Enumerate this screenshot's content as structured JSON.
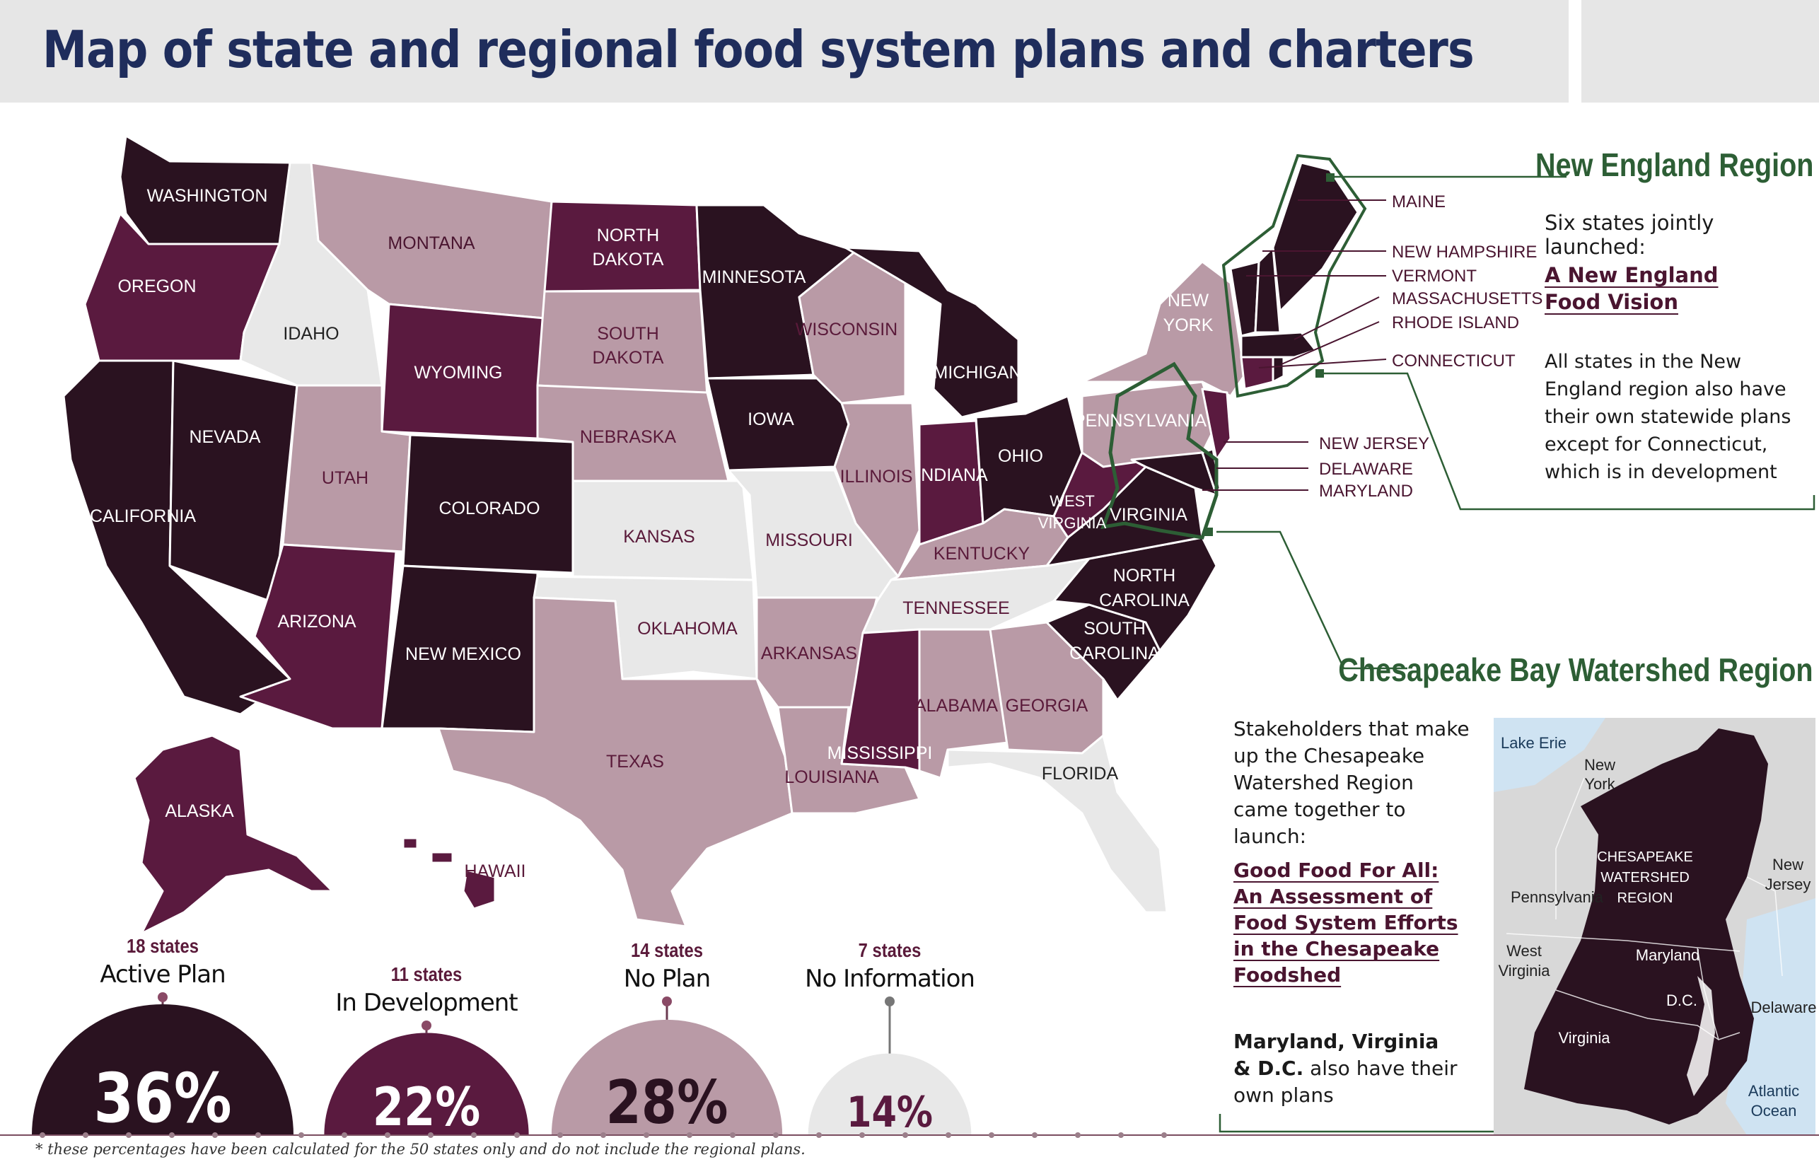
{
  "title": "Map of state and regional food system plans and charters",
  "colors": {
    "active": "#2a1220",
    "development": "#5a1a3f",
    "noplan": "#b99aa6",
    "noinfo": "#e8e8e8",
    "region_green": "#2d5e35"
  },
  "states": {
    "washington": "WASHINGTON",
    "oregon": "OREGON",
    "california": "CALIFORNIA",
    "nevada": "NEVADA",
    "idaho": "IDAHO",
    "montana": "MONTANA",
    "wyoming": "WYOMING",
    "utah": "UTAH",
    "arizona": "ARIZONA",
    "colorado": "COLORADO",
    "new_mexico": "NEW MEXICO",
    "north_dakota_1": "NORTH",
    "north_dakota_2": "DAKOTA",
    "south_dakota_1": "SOUTH",
    "south_dakota_2": "DAKOTA",
    "nebraska": "NEBRASKA",
    "kansas": "KANSAS",
    "oklahoma": "OKLAHOMA",
    "texas": "TEXAS",
    "minnesota": "MINNESOTA",
    "iowa": "IOWA",
    "missouri": "MISSOURI",
    "arkansas": "ARKANSAS",
    "louisiana": "LOUISIANA",
    "wisconsin": "WISCONSIN",
    "illinois": "ILLINOIS",
    "michigan": "MICHIGAN",
    "indiana": "INDIANA",
    "ohio": "OHIO",
    "kentucky": "KENTUCKY",
    "tennessee": "TENNESSEE",
    "mississippi": "MISSISSIPPI",
    "alabama": "ALABAMA",
    "georgia": "GEORGIA",
    "florida": "FLORIDA",
    "south_carolina_1": "SOUTH",
    "south_carolina_2": "CAROLINA",
    "north_carolina_1": "NORTH",
    "north_carolina_2": "CAROLINA",
    "virginia": "VIRGINIA",
    "west_virginia_1": "WEST",
    "west_virginia_2": "VIRGINIA",
    "pennsylvania": "PENNSYLVANIA",
    "new_york_1": "NEW",
    "new_york_2": "YORK",
    "alaska": "ALASKA",
    "hawaii": "HAWAII"
  },
  "callouts": {
    "maine": "MAINE",
    "new_hampshire": "NEW HAMPSHIRE",
    "vermont": "VERMONT",
    "massachusetts": "MASSACHUSETTS",
    "rhode_island": "RHODE ISLAND",
    "connecticut": "CONNECTICUT",
    "new_jersey": "NEW JERSEY",
    "delaware": "DELAWARE",
    "maryland": "MARYLAND"
  },
  "new_england": {
    "title": "New England Region",
    "intro": "Six states jointly launched:",
    "link": "A New England Food Vision",
    "note": "All states in the New England region also have their own statewide plans except for Connecticut, which is in development"
  },
  "chesapeake": {
    "title": "Chesapeake Bay Watershed Region",
    "intro": "Stakeholders that make up the Chesapeake Watershed Region came together to launch:",
    "link": "Good Food For All: An Assessment of Food System Efforts in the Chesapeake Foodshed",
    "note_bold": "Maryland, Virginia & D.C.",
    "note_rest": " also have their own plans",
    "inset": {
      "lake_erie": "Lake Erie",
      "new_york_1": "New",
      "new_york_2": "York",
      "pennsylvania": "Pennsylvania",
      "west_virginia_1": "West",
      "west_virginia_2": "Virginia",
      "maryland": "Maryland",
      "dc": "D.C.",
      "virginia": "Virginia",
      "new_jersey_1": "New",
      "new_jersey_2": "Jersey",
      "delaware": "Delaware",
      "atlantic_1": "Atlantic",
      "atlantic_2": "Ocean",
      "region_1": "CHESAPEAKE",
      "region_2": "WATERSHED",
      "region_3": "REGION"
    }
  },
  "stats": [
    {
      "count": "18 states",
      "label": "Active Plan",
      "percent": "36%",
      "value": 36
    },
    {
      "count": "11 states",
      "label": "In Development",
      "percent": "22%",
      "value": 22
    },
    {
      "count": "14 states",
      "label": "No Plan",
      "percent": "28%",
      "value": 28
    },
    {
      "count": "7 states",
      "label": "No Information",
      "percent": "14%",
      "value": 14
    }
  ],
  "footnote": "* these percentages have been calculated for the 50 states only and do not include the regional plans."
}
